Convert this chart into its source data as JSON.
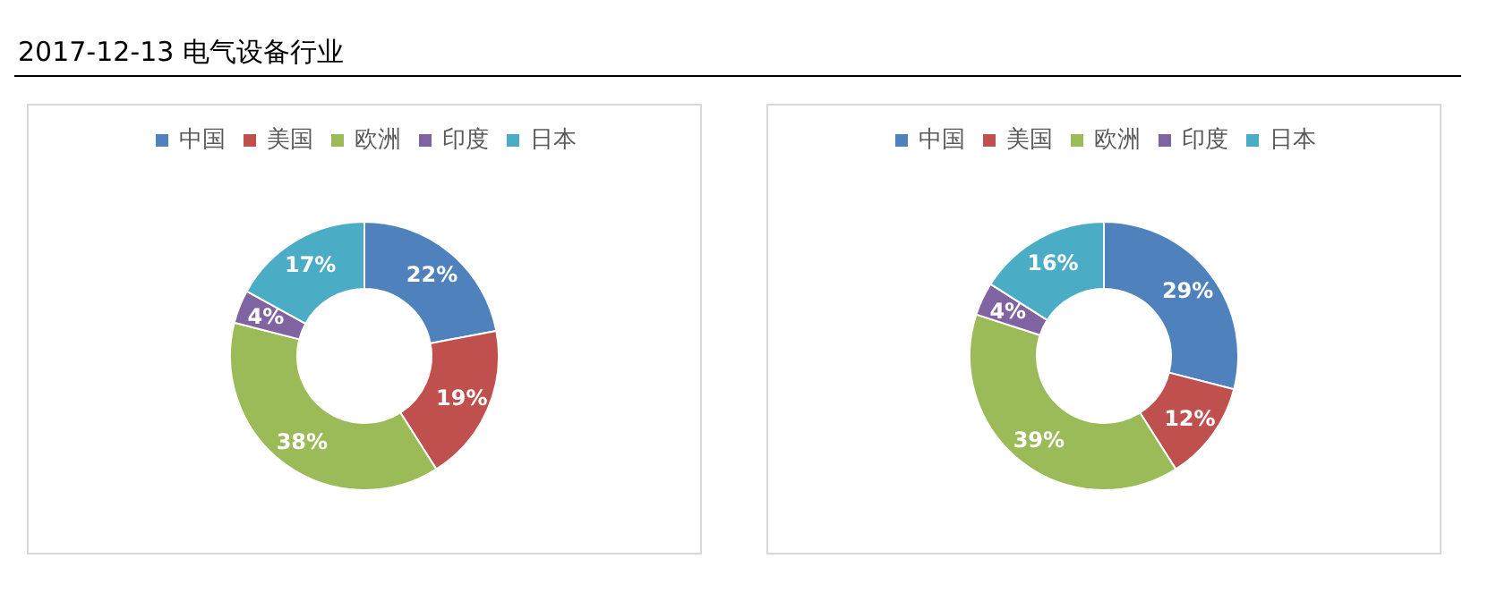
{
  "chart_data": [
    {
      "type": "donut",
      "title": "2017-12-13  电气设备行业",
      "categories": [
        "中国",
        "美国",
        "欧洲",
        "印度",
        "日本"
      ],
      "values": [
        22,
        19,
        38,
        4,
        17
      ],
      "value_labels": [
        "22%",
        "19%",
        "38%",
        "4%",
        "17%"
      ],
      "colors": [
        "#4f81bd",
        "#c0504d",
        "#9bbb59",
        "#8064a2",
        "#4bacc6"
      ],
      "legend": "top"
    },
    {
      "type": "donut",
      "categories": [
        "中国",
        "美国",
        "欧洲",
        "印度",
        "日本"
      ],
      "values": [
        29,
        12,
        39,
        4,
        16
      ],
      "value_labels": [
        "29%",
        "12%",
        "39%",
        "4%",
        "16%"
      ],
      "colors": [
        "#4f81bd",
        "#c0504d",
        "#9bbb59",
        "#8064a2",
        "#4bacc6"
      ],
      "legend": "top"
    }
  ]
}
